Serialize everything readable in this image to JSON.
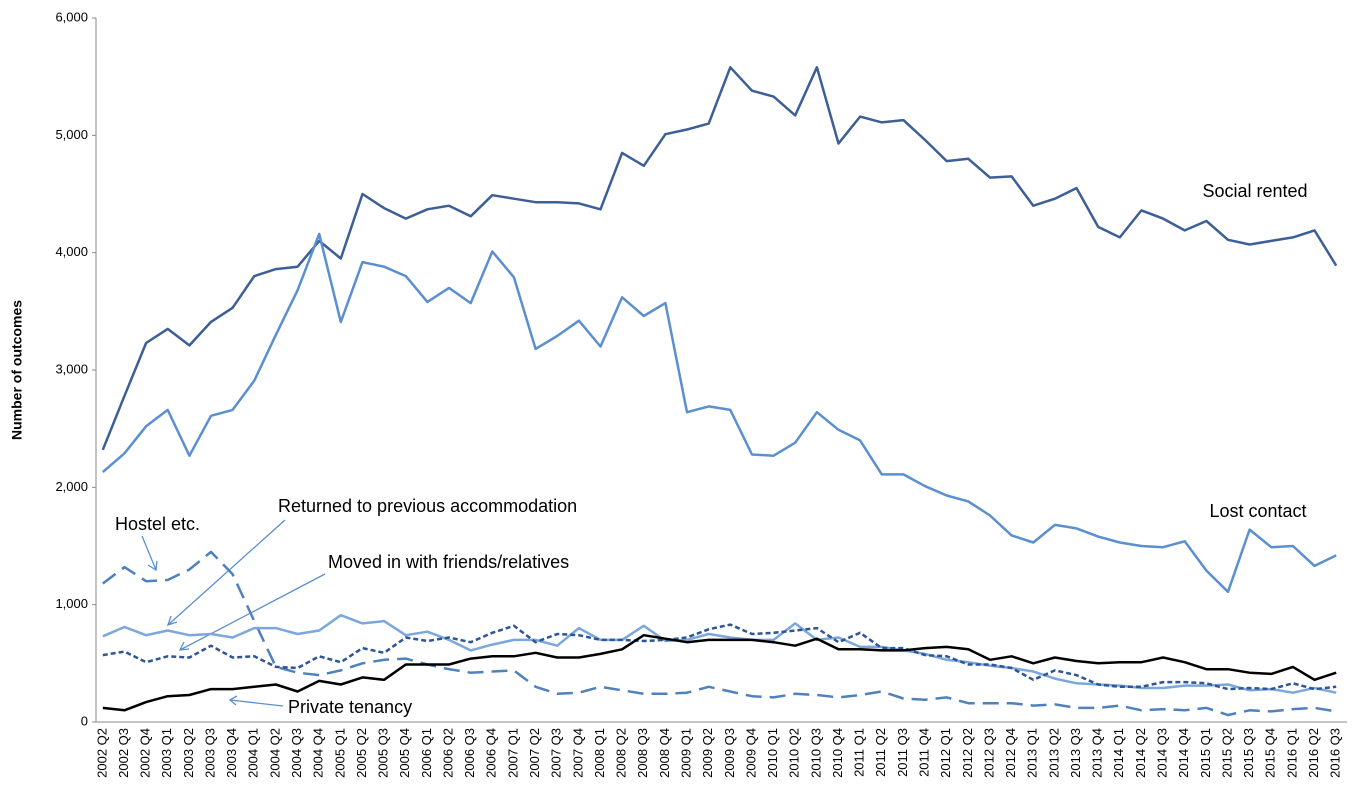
{
  "chart_data": {
    "type": "line",
    "y_label": "Number of outcomes",
    "categories": [
      "2002 Q2",
      "2002 Q3",
      "2002 Q4",
      "2003 Q1",
      "2003 Q2",
      "2003 Q3",
      "2003 Q4",
      "2004 Q1",
      "2004 Q2",
      "2004 Q3",
      "2004 Q4",
      "2005 Q1",
      "2005 Q2",
      "2005 Q3",
      "2005 Q4",
      "2006 Q1",
      "2006 Q2",
      "2006 Q3",
      "2006 Q4",
      "2007 Q1",
      "2007 Q2",
      "2007 Q3",
      "2007 Q4",
      "2008 Q1",
      "2008 Q2",
      "2008 Q3",
      "2008 Q4",
      "2009 Q1",
      "2009 Q2",
      "2009 Q3",
      "2009 Q4",
      "2010 Q1",
      "2010 Q2",
      "2010 Q3",
      "2010 Q4",
      "2011 Q1",
      "2011 Q2",
      "2011 Q3",
      "2011 Q4",
      "2012 Q1",
      "2012 Q2",
      "2012 Q3",
      "2012 Q4",
      "2013 Q1",
      "2013 Q2",
      "2013 Q3",
      "2013 Q4",
      "2014 Q1",
      "2014 Q2",
      "2014 Q3",
      "2014 Q4",
      "2015 Q1",
      "2015 Q2",
      "2015 Q3",
      "2015 Q4",
      "2016 Q1",
      "2016 Q2",
      "2016 Q3"
    ],
    "ylim": [
      0,
      6000
    ],
    "yticks": [
      0,
      {
        "value": 1000,
        "label": "1,000"
      },
      {
        "value": 2000,
        "label": "2,000"
      },
      {
        "value": 3000,
        "label": "3,000"
      },
      {
        "value": 4000,
        "label": "4,000"
      },
      {
        "value": 5000,
        "label": "5,000"
      },
      {
        "value": 6000,
        "label": "6,000"
      }
    ],
    "grid": false,
    "series": [
      {
        "name": "Social rented",
        "color": "#3b5f96",
        "dash": "solid",
        "values": [
          2320,
          2780,
          3230,
          3350,
          3210,
          3410,
          3530,
          3800,
          3860,
          3880,
          4100,
          3950,
          4500,
          4380,
          4290,
          4370,
          4400,
          4310,
          4490,
          4460,
          4430,
          4430,
          4420,
          4370,
          4850,
          4740,
          5010,
          5050,
          5100,
          5580,
          5380,
          5330,
          5170,
          5580,
          4930,
          5160,
          5110,
          5130,
          4960,
          4780,
          4800,
          4640,
          4650,
          4400,
          4460,
          4550,
          4220,
          4130,
          4360,
          4290,
          4190,
          4270,
          4110,
          4070,
          4100,
          4130,
          4190,
          3890
        ]
      },
      {
        "name": "Lost contact",
        "color": "#5b8fd0",
        "dash": "solid",
        "values": [
          2130,
          2290,
          2520,
          2660,
          2270,
          2610,
          2660,
          2910,
          3300,
          3680,
          4160,
          3410,
          3920,
          3880,
          3800,
          3580,
          3700,
          3570,
          4010,
          3790,
          3180,
          3290,
          3420,
          3200,
          3620,
          3460,
          3570,
          2640,
          2690,
          2660,
          2280,
          2270,
          2380,
          2640,
          2490,
          2400,
          2110,
          2110,
          2010,
          1930,
          1880,
          1760,
          1590,
          1530,
          1680,
          1650,
          1580,
          1530,
          1500,
          1490,
          1540,
          1290,
          1110,
          1640,
          1490,
          1500,
          1330,
          1420
        ]
      },
      {
        "name": "Hostel etc.",
        "color": "#4f81bd",
        "dash": "long",
        "values": [
          1180,
          1320,
          1200,
          1210,
          1300,
          1450,
          1260,
          860,
          470,
          420,
          400,
          440,
          500,
          530,
          540,
          490,
          450,
          420,
          430,
          440,
          300,
          240,
          250,
          300,
          270,
          240,
          240,
          250,
          300,
          260,
          220,
          210,
          240,
          230,
          210,
          230,
          260,
          200,
          190,
          210,
          160,
          160,
          160,
          140,
          150,
          120,
          120,
          140,
          100,
          110,
          100,
          120,
          60,
          100,
          90,
          110,
          120,
          90
        ]
      },
      {
        "name": "Returned to previous accommodation",
        "color": "#7ba7dc",
        "dash": "solid",
        "values": [
          730,
          810,
          740,
          780,
          740,
          750,
          720,
          800,
          800,
          750,
          780,
          910,
          840,
          860,
          740,
          770,
          700,
          610,
          660,
          700,
          700,
          650,
          800,
          700,
          700,
          820,
          690,
          700,
          750,
          720,
          700,
          700,
          840,
          700,
          720,
          640,
          640,
          610,
          580,
          530,
          510,
          480,
          460,
          430,
          370,
          330,
          320,
          310,
          290,
          290,
          310,
          310,
          320,
          270,
          280,
          250,
          290,
          250
        ]
      },
      {
        "name": "Moved in with friends/relatives",
        "color": "#2f5597",
        "dash": "short",
        "values": [
          570,
          600,
          510,
          560,
          550,
          650,
          550,
          560,
          470,
          460,
          560,
          510,
          630,
          590,
          720,
          690,
          720,
          680,
          760,
          820,
          680,
          750,
          740,
          700,
          700,
          690,
          700,
          720,
          790,
          830,
          750,
          760,
          780,
          800,
          680,
          760,
          630,
          630,
          570,
          560,
          490,
          490,
          460,
          360,
          440,
          400,
          320,
          300,
          300,
          340,
          340,
          330,
          280,
          290,
          280,
          330,
          280,
          300
        ]
      },
      {
        "name": "Private tenancy",
        "color": "#000000",
        "dash": "solid",
        "values": [
          120,
          100,
          170,
          220,
          230,
          280,
          280,
          300,
          320,
          260,
          350,
          320,
          380,
          360,
          490,
          490,
          490,
          540,
          560,
          560,
          590,
          550,
          550,
          580,
          620,
          740,
          710,
          680,
          700,
          700,
          700,
          680,
          650,
          710,
          620,
          620,
          610,
          610,
          630,
          640,
          620,
          530,
          560,
          500,
          550,
          520,
          500,
          510,
          510,
          550,
          510,
          450,
          450,
          420,
          410,
          470,
          360,
          420
        ]
      }
    ]
  }
}
